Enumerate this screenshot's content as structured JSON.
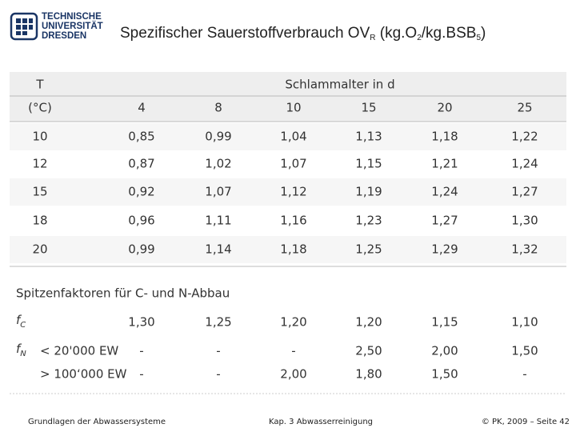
{
  "logo": {
    "lines": [
      "TECHNISCHE",
      "UNIVERSITÄT",
      "DRESDEN"
    ]
  },
  "title": [
    "Spezifischer Sauerstoffverbrauch OV",
    "R",
    " (kg.O",
    "2",
    "/kg.BSB",
    "5",
    ")"
  ],
  "table": {
    "header": [
      "T",
      "Schlammalter in d"
    ],
    "unit": "(°C)",
    "columns": [
      "4",
      "8",
      "10",
      "15",
      "20",
      "25"
    ],
    "rows": [
      [
        "10",
        "0,85",
        "0,99",
        "1,04",
        "1,13",
        "1,18",
        "1,22"
      ],
      [
        "12",
        "0,87",
        "1,02",
        "1,07",
        "1,15",
        "1,21",
        "1,24"
      ],
      [
        "15",
        "0,92",
        "1,07",
        "1,12",
        "1,19",
        "1,24",
        "1,27"
      ],
      [
        "18",
        "0,96",
        "1,11",
        "1,16",
        "1,23",
        "1,27",
        "1,30"
      ],
      [
        "20",
        "0,99",
        "1,14",
        "1,18",
        "1,25",
        "1,29",
        "1,32"
      ]
    ]
  },
  "peak": {
    "title": "Spitzenfaktoren für C- und N-Abbau",
    "rows": [
      {
        "symbol": [
          "f",
          "C"
        ],
        "values": [
          "1,30",
          "1,25",
          "1,20",
          "1,20",
          "1,15",
          "1,10"
        ]
      },
      {
        "symbol": [
          "f",
          "N"
        ],
        "label": "< 20'000 EW",
        "values": [
          "-",
          "-",
          "-",
          "2,50",
          "2,00",
          "1,50"
        ]
      },
      {
        "label": "> 100‘000 EW",
        "values": [
          "-",
          "-",
          "2,00",
          "1,80",
          "1,50",
          "-"
        ]
      }
    ]
  },
  "footer": [
    "Grundlagen der Abwassersysteme",
    "Kap. 3 Abwasserreinigung",
    "© PK, 2009 – Seite 42"
  ]
}
